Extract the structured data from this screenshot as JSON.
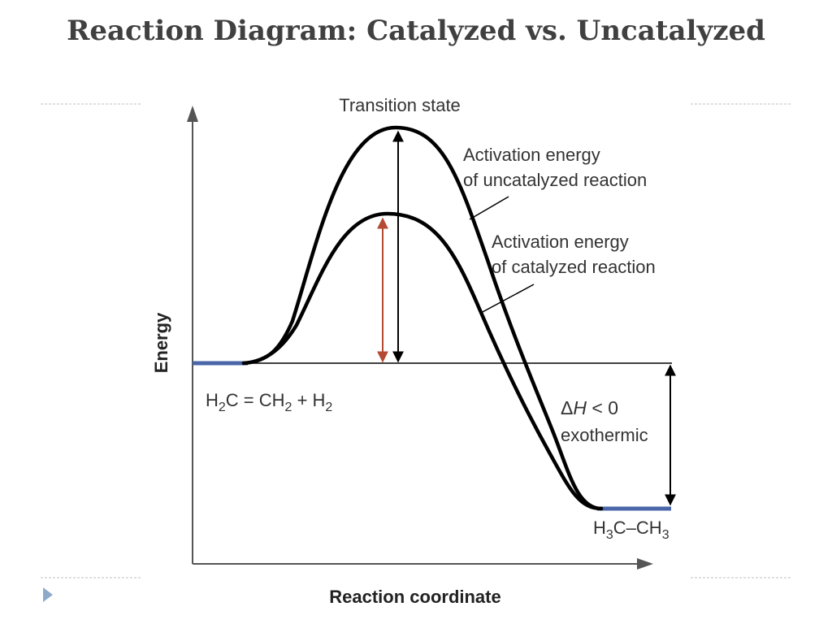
{
  "slide": {
    "title": "Reaction Diagram: Catalyzed vs. Uncatalyzed"
  },
  "diagram": {
    "y_axis_label": "Energy",
    "x_axis_label": "Reaction coordinate",
    "transition_state_label": "Transition state",
    "uncatalyzed_label": [
      "Activation energy",
      "of uncatalyzed reaction"
    ],
    "catalyzed_label": [
      "Activation energy",
      "of catalyzed reaction"
    ],
    "reactants": {
      "base": "H",
      "s1": "2",
      "mid1": "C = CH",
      "s2": "2",
      "mid2": " + H",
      "s3": "2"
    },
    "products": {
      "base": "H",
      "s1": "3",
      "mid": "C–CH",
      "s2": "3"
    },
    "enthalpy": {
      "delta": "Δ",
      "h": "H",
      "rel": " < 0",
      "note": "exothermic"
    },
    "colors": {
      "curve": "#000000",
      "level_line": "#4a66a8",
      "catalyzed_arrow": "#b54a32",
      "axis": "#555555",
      "divider": "#bfbfbf",
      "bullet": "#8eaacb"
    }
  }
}
